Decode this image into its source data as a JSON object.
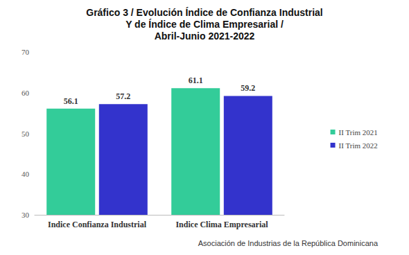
{
  "chart_data": {
    "type": "bar",
    "title": "Gráfico 3 / Evolución Índice de Confianza Industrial\nY de Índice de Clima Empresarial /\nAbril-Junio 2021-2022",
    "source": "Asociación de Industrias de la República Dominicana",
    "categories": [
      "Indice Confianza Industrial",
      "Indice Clima Empresarial"
    ],
    "series": [
      {
        "name": "II Trim 2021",
        "color": "#33cc99",
        "values": [
          56.1,
          61.1
        ]
      },
      {
        "name": "II Trim 2022",
        "color": "#3333cc",
        "values": [
          57.2,
          59.2
        ]
      }
    ],
    "ylim": [
      30,
      70
    ],
    "yticks": [
      30,
      40,
      50,
      60,
      70
    ],
    "grid": false,
    "legend": "right",
    "data_labels": true
  }
}
